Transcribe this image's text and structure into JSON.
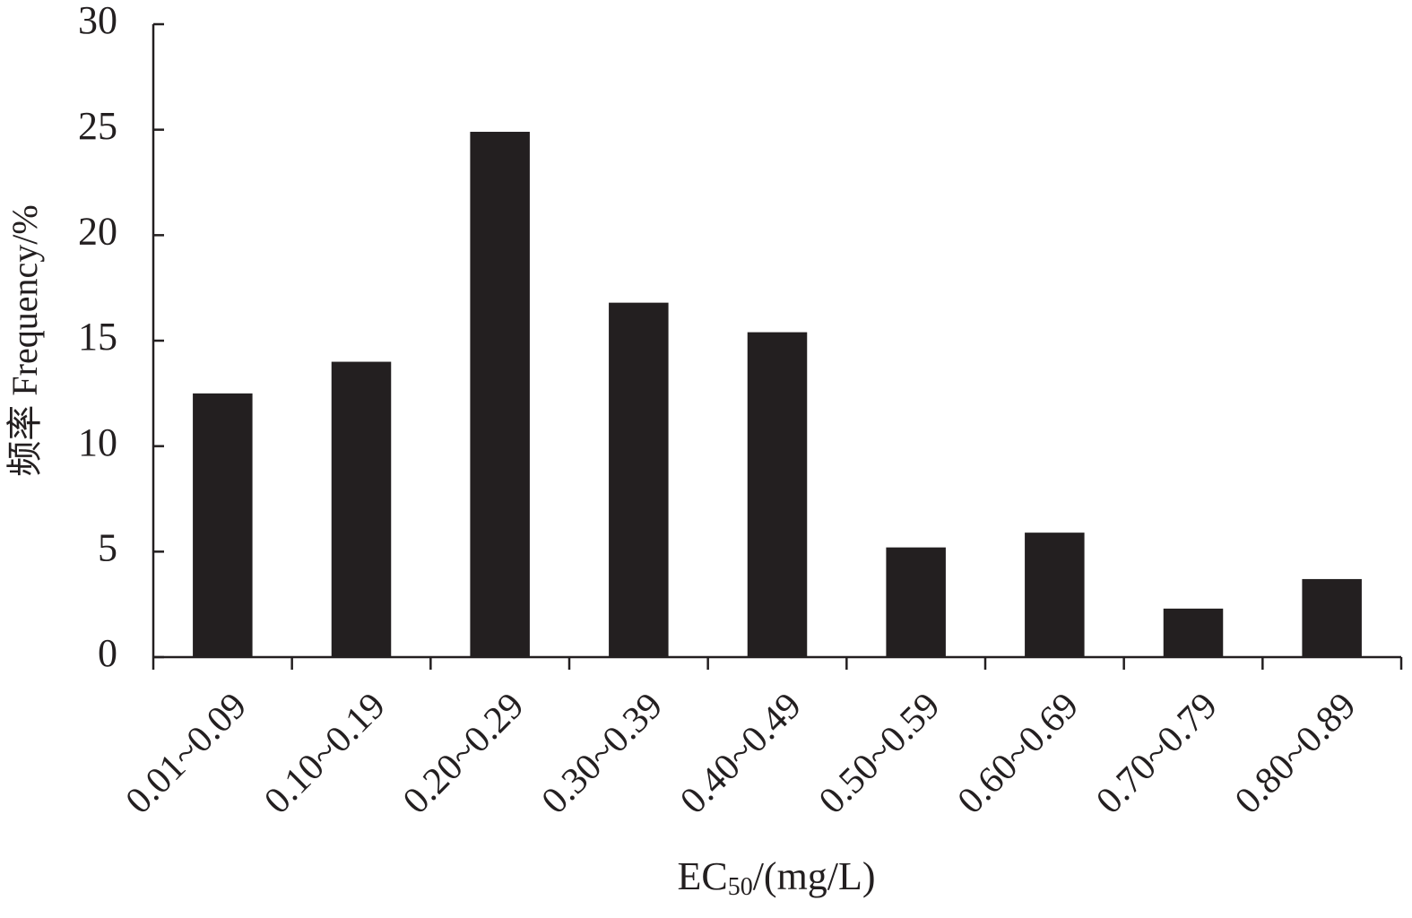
{
  "chart_data": {
    "type": "bar",
    "y_label": "频率 Frequency/%",
    "x_label": [
      "EC",
      "50",
      "/(mg/L)"
    ],
    "categories": [
      "0.01~0.09",
      "0.10~0.19",
      "0.20~0.29",
      "0.30~0.39",
      "0.40~0.49",
      "0.50~0.59",
      "0.60~0.69",
      "0.70~0.79",
      "0.80~0.89"
    ],
    "values": [
      12.5,
      14.0,
      24.9,
      16.8,
      15.4,
      5.2,
      5.9,
      2.3,
      3.7
    ],
    "color": "#231f20",
    "ylim": [
      0,
      30
    ],
    "yticks": [
      0,
      5,
      10,
      15,
      20,
      25,
      30
    ],
    "grid": false
  }
}
